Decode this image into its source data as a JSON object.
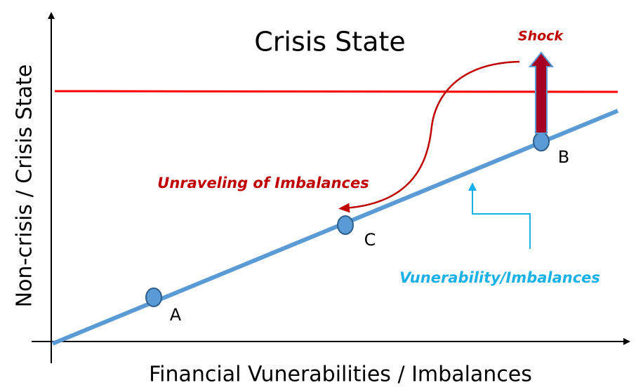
{
  "title": "Crisis State",
  "y_axis_label": "Non-crisis / Crisis State",
  "x_axis_label": "Financial Vunerabilities / Imbalances",
  "annotations": {
    "shock": "Shock",
    "unraveling": "Unraveling of Imbalances",
    "vulnerability": "Vunerability/Imbalances"
  },
  "points": [
    {
      "label": "A"
    },
    {
      "label": "C"
    },
    {
      "label": "B"
    }
  ]
}
